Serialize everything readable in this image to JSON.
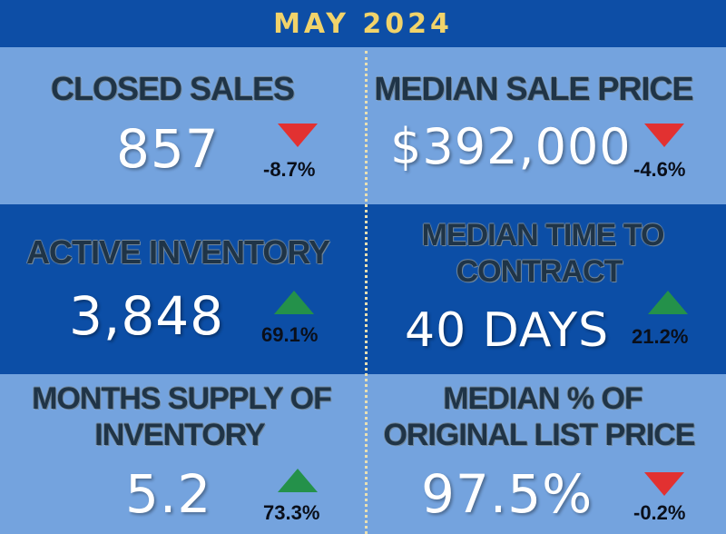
{
  "header": {
    "title": "MAY 2024"
  },
  "colors": {
    "header_text": "#f1d36a",
    "down_arrow": "#e23131",
    "up_arrow": "#24914a"
  },
  "metrics": [
    {
      "label": "CLOSED SALES",
      "value": "857",
      "change": "-8.7%",
      "trend": "down",
      "trend_icon": "down-arrow-icon"
    },
    {
      "label": "MEDIAN SALE PRICE",
      "value": "$392,000",
      "change": "-4.6%",
      "trend": "down",
      "trend_icon": "down-arrow-icon"
    },
    {
      "label": "ACTIVE INVENTORY",
      "value": "3,848",
      "change": "69.1%",
      "trend": "up",
      "trend_icon": "up-arrow-icon"
    },
    {
      "label_line1": "MEDIAN TIME TO",
      "label_line2": "CONTRACT",
      "value": "40 DAYS",
      "change": "21.2%",
      "trend": "up",
      "trend_icon": "up-arrow-icon"
    },
    {
      "label_line1": "MONTHS SUPPLY OF",
      "label_line2": "INVENTORY",
      "value": "5.2",
      "change": "73.3%",
      "trend": "up",
      "trend_icon": "up-arrow-icon"
    },
    {
      "label_line1": "MEDIAN % OF",
      "label_line2": "ORIGINAL LIST PRICE",
      "value": "97.5%",
      "change": "-0.2%",
      "trend": "down",
      "trend_icon": "down-arrow-icon"
    }
  ]
}
